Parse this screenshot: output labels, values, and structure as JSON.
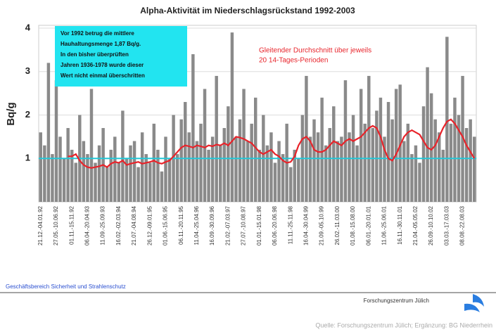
{
  "chart_data": {
    "type": "bar",
    "title": "Alpha-Aktivität im Niederschlagsrückstand 1992-2003",
    "y_label": "Bq/g",
    "annotation_box": [
      "Vor 1992 betrug die mittlere",
      "Hauhaltungsmenge 1,87 Bq/g.",
      "In den bisher überprüften",
      "Jahren 1936-1978 wurde dieser",
      "Wert nicht einmal überschritten"
    ],
    "annotation_line": [
      "Gleitender Durchschnitt über jeweils",
      "20 14-Tages-Perioden"
    ],
    "footer_left": "Geschäftsbereich Sicherheit und Strahlenschutz",
    "logo_text": "Forschungszentrum Jülich",
    "source": "Quelle: Forschungszentrum Jülich; Ergänzung: BG Niederrhein",
    "ylim": [
      0,
      4
    ],
    "yticks": [
      1,
      2,
      3,
      4
    ],
    "grid": true,
    "reference_line": 1,
    "reference_color": "#22c8d8",
    "categories": [
      "21.12.-04.01.92",
      null,
      null,
      null,
      "27.05.-10.06.92",
      null,
      null,
      null,
      "01.11.-15.11.92",
      null,
      null,
      null,
      "06.04.-20.04.93",
      null,
      null,
      null,
      "11.09.-25.09.93",
      null,
      null,
      null,
      "16.02.-02.03.94",
      null,
      null,
      null,
      "21.07.-04.08.94",
      null,
      null,
      null,
      "26.12.-09.01.95",
      null,
      null,
      null,
      "01.06.-15.06.95",
      null,
      null,
      null,
      "06.11.-20.11.95",
      null,
      null,
      null,
      "11.04.-25.04.96",
      null,
      null,
      null,
      "16.09.-30.09.96",
      null,
      null,
      null,
      "21.02.-07.03.97",
      null,
      null,
      null,
      "27.07.-10.08.97",
      null,
      null,
      null,
      "01.01.-15.01.98",
      null,
      null,
      null,
      "06.06.-20.06.98",
      null,
      null,
      null,
      "11.11.-25.11.98",
      null,
      null,
      null,
      "16.04.-30.04.99",
      null,
      null,
      null,
      "21.09.-05.10.99",
      null,
      null,
      null,
      "26.02.-11.03.00",
      null,
      null,
      null,
      "01.08.-15.08.00",
      null,
      null,
      null,
      "06.01.-20.01.01",
      null,
      null,
      null,
      "11.06.-25.06.01",
      null,
      null,
      null,
      "16.11.-30.11.01",
      null,
      null,
      null,
      "21.04.-05.05.02",
      null,
      null,
      null,
      "26.09.-10.10.02",
      null,
      null,
      null,
      "03.03.-17.03.03",
      null,
      null,
      null,
      "08.08.-22.08.03",
      null,
      null,
      null
    ],
    "series": [
      {
        "color": "#8a8a8a",
        "values": [
          1.6,
          1.3,
          3.2,
          1.1,
          2.8,
          1.5,
          1.0,
          1.7,
          1.2,
          0.9,
          2.0,
          1.4,
          1.1,
          2.6,
          0.9,
          1.3,
          1.7,
          0.8,
          1.2,
          1.5,
          0.9,
          2.1,
          1.0,
          1.3,
          1.4,
          0.8,
          1.6,
          1.1,
          0.9,
          1.8,
          1.2,
          0.7,
          1.5,
          1.0,
          2.0,
          1.1,
          1.9,
          2.3,
          1.6,
          3.4,
          1.4,
          1.8,
          2.6,
          1.2,
          1.5,
          2.9,
          1.3,
          1.7,
          2.2,
          3.9,
          1.5,
          1.9,
          2.6,
          1.4,
          1.8,
          2.4,
          1.2,
          2.0,
          1.3,
          1.6,
          0.9,
          1.4,
          1.1,
          1.8,
          0.8,
          1.2,
          1.0,
          2.0,
          2.9,
          1.5,
          1.9,
          1.6,
          2.4,
          1.3,
          1.7,
          2.2,
          1.4,
          1.5,
          2.8,
          1.6,
          2.0,
          1.3,
          2.6,
          1.8,
          2.9,
          1.7,
          2.1,
          2.4,
          1.5,
          2.3,
          1.9,
          2.6,
          2.7,
          1.4,
          1.8,
          1.1,
          1.3,
          0.9,
          2.2,
          3.1,
          2.5,
          1.9,
          1.6,
          1.2,
          3.8,
          1.8,
          2.4,
          2.0,
          2.9,
          1.7,
          1.9,
          1.5
        ]
      },
      {
        "color": "#e8232a",
        "values": [
          null,
          null,
          null,
          null,
          null,
          null,
          null,
          1.05,
          1.05,
          1.1,
          0.95,
          0.85,
          0.8,
          0.78,
          0.8,
          0.82,
          0.85,
          0.8,
          0.88,
          0.92,
          0.9,
          0.95,
          0.85,
          0.88,
          0.9,
          0.92,
          0.88,
          0.9,
          0.92,
          0.95,
          0.9,
          0.88,
          0.92,
          0.95,
          1.05,
          1.15,
          1.25,
          1.3,
          1.28,
          1.25,
          1.3,
          1.28,
          1.25,
          1.3,
          1.28,
          1.32,
          1.3,
          1.35,
          1.3,
          1.4,
          1.5,
          1.48,
          1.45,
          1.4,
          1.35,
          1.25,
          1.15,
          1.1,
          1.15,
          1.2,
          1.1,
          1.05,
          0.95,
          0.9,
          0.92,
          1.05,
          1.3,
          1.45,
          1.5,
          1.4,
          1.2,
          1.15,
          1.15,
          1.2,
          1.3,
          1.4,
          1.35,
          1.3,
          1.4,
          1.45,
          1.4,
          1.45,
          1.5,
          1.6,
          1.7,
          1.75,
          1.7,
          1.5,
          1.2,
          1.0,
          0.95,
          1.1,
          1.3,
          1.5,
          1.6,
          1.65,
          1.6,
          1.55,
          1.4,
          1.25,
          1.2,
          1.3,
          1.5,
          1.7,
          1.85,
          1.9,
          1.8,
          1.65,
          1.5,
          1.3,
          1.15,
          1.0
        ]
      }
    ]
  }
}
